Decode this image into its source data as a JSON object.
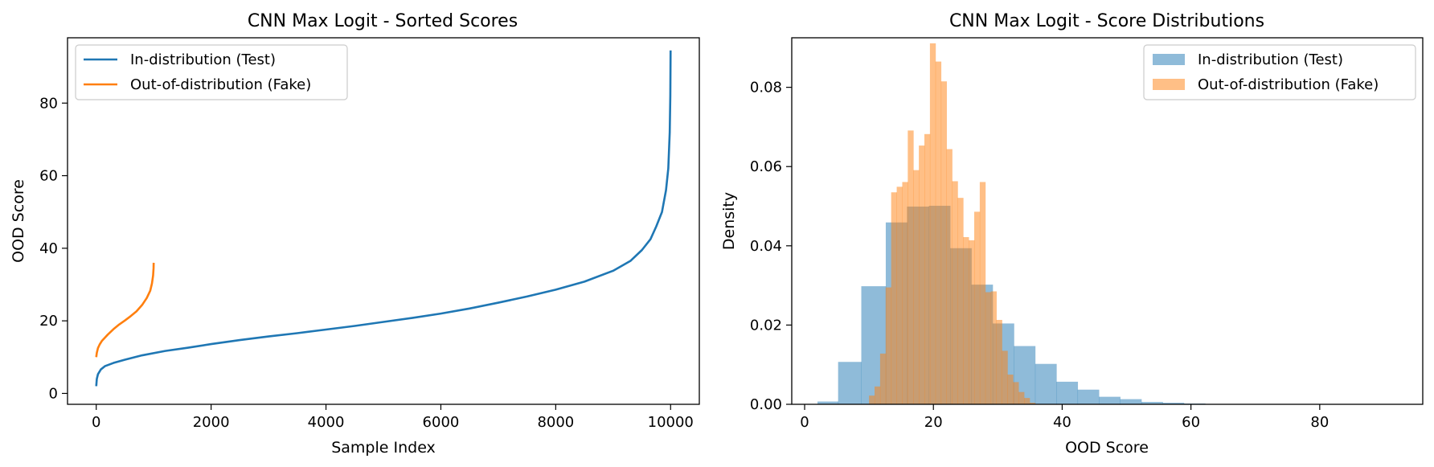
{
  "chart_data": [
    {
      "type": "line",
      "title": "CNN Max Logit - Sorted Scores",
      "xlabel": "Sample Index",
      "ylabel": "OOD Score",
      "xlim": [
        -500,
        10500
      ],
      "ylim": [
        -3,
        98
      ],
      "xticks": [
        0,
        2000,
        4000,
        6000,
        8000,
        10000
      ],
      "yticks": [
        0,
        20,
        40,
        60,
        80
      ],
      "grid": false,
      "legend_position": "top-left",
      "series": [
        {
          "name": "In-distribution (Test)",
          "color": "#1f77b4",
          "points": [
            [
              0,
              2
            ],
            [
              10,
              4
            ],
            [
              30,
              5.3
            ],
            [
              80,
              6.6
            ],
            [
              150,
              7.5
            ],
            [
              300,
              8.4
            ],
            [
              500,
              9.3
            ],
            [
              800,
              10.5
            ],
            [
              1200,
              11.7
            ],
            [
              1600,
              12.6
            ],
            [
              2000,
              13.6
            ],
            [
              2500,
              14.7
            ],
            [
              3000,
              15.7
            ],
            [
              3500,
              16.6
            ],
            [
              4000,
              17.6
            ],
            [
              4500,
              18.6
            ],
            [
              5000,
              19.7
            ],
            [
              5500,
              20.8
            ],
            [
              6000,
              22.0
            ],
            [
              6500,
              23.4
            ],
            [
              7000,
              25.0
            ],
            [
              7500,
              26.7
            ],
            [
              8000,
              28.6
            ],
            [
              8500,
              30.8
            ],
            [
              9000,
              33.8
            ],
            [
              9300,
              36.5
            ],
            [
              9500,
              39.5
            ],
            [
              9650,
              42.5
            ],
            [
              9750,
              46
            ],
            [
              9850,
              50
            ],
            [
              9920,
              56
            ],
            [
              9960,
              62
            ],
            [
              9985,
              72
            ],
            [
              9995,
              82
            ],
            [
              10000,
              94.5
            ]
          ]
        },
        {
          "name": "Out-of-distribution (Fake)",
          "color": "#ff7f0e",
          "points": [
            [
              0,
              10
            ],
            [
              10,
              11.2
            ],
            [
              30,
              12.5
            ],
            [
              60,
              13.5
            ],
            [
              100,
              14.5
            ],
            [
              200,
              16.2
            ],
            [
              300,
              17.7
            ],
            [
              400,
              19.0
            ],
            [
              500,
              20.1
            ],
            [
              600,
              21.3
            ],
            [
              700,
              22.6
            ],
            [
              800,
              24.4
            ],
            [
              880,
              26.3
            ],
            [
              940,
              28.3
            ],
            [
              970,
              30.3
            ],
            [
              990,
              32.5
            ],
            [
              998,
              34.5
            ],
            [
              1000,
              36
            ]
          ]
        }
      ]
    },
    {
      "type": "histogram",
      "title": "CNN Max Logit - Score Distributions",
      "xlabel": "OOD Score",
      "ylabel": "Density",
      "xlim": [
        -2,
        96
      ],
      "ylim": [
        0,
        0.0925
      ],
      "xticks": [
        0,
        20,
        40,
        60,
        80
      ],
      "yticks": [
        0.0,
        0.02,
        0.04,
        0.06,
        0.08
      ],
      "ytick_labels": [
        "0.00",
        "0.02",
        "0.04",
        "0.06",
        "0.08"
      ],
      "grid": false,
      "legend_position": "top-right",
      "series": [
        {
          "name": "In-distribution (Test)",
          "color": "#1f77b4",
          "opacity": 0.5,
          "bin_edges": [
            2,
            5.2,
            8.8,
            12.6,
            15.9,
            19.3,
            22.6,
            25.9,
            29.2,
            32.5,
            35.8,
            39.1,
            42.4,
            45.7,
            49,
            52.3,
            55.6,
            58.9,
            62.2,
            65.5
          ],
          "density": [
            0.0007,
            0.0107,
            0.0298,
            0.0459,
            0.0499,
            0.0501,
            0.0394,
            0.0302,
            0.0204,
            0.0147,
            0.0102,
            0.0057,
            0.0037,
            0.0019,
            0.0013,
            0.0006,
            0.0004,
            0.0002,
            0.0001
          ]
        },
        {
          "name": "Out-of-distribution (Fake)",
          "color": "#ff7f0e",
          "opacity": 0.5,
          "bin_edges": [
            10.0,
            10.86,
            11.72,
            12.58,
            13.44,
            14.3,
            15.16,
            16.02,
            16.88,
            17.74,
            18.6,
            19.46,
            20.32,
            21.18,
            22.04,
            22.9,
            23.76,
            24.62,
            25.48,
            26.34,
            27.2,
            28.06,
            28.92,
            29.78,
            30.64,
            31.5,
            32.36,
            33.22,
            34.08,
            34.94,
            35.8
          ],
          "density": [
            0.0022,
            0.0045,
            0.0128,
            0.0295,
            0.0535,
            0.0549,
            0.0561,
            0.0691,
            0.0591,
            0.0653,
            0.0682,
            0.0911,
            0.0865,
            0.0815,
            0.0644,
            0.0563,
            0.0521,
            0.0422,
            0.0414,
            0.0486,
            0.0561,
            0.0283,
            0.0285,
            0.0213,
            0.0135,
            0.0075,
            0.0056,
            0.0031,
            0.0016,
            0.0004
          ]
        }
      ]
    }
  ]
}
